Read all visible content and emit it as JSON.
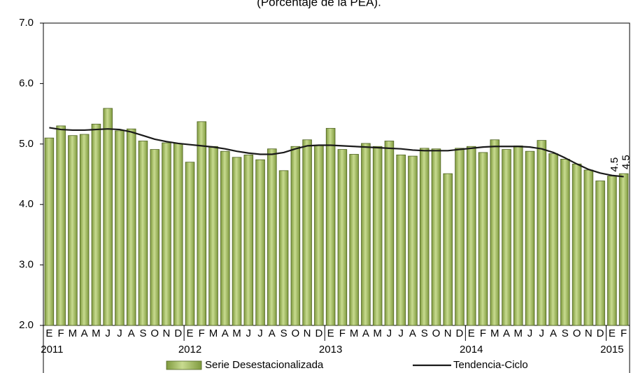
{
  "chart_data": {
    "type": "bar-line",
    "title": "(Porcentaje de la PEA).",
    "categories": [
      "E",
      "F",
      "M",
      "A",
      "M",
      "J",
      "J",
      "A",
      "S",
      "O",
      "N",
      "D",
      "E",
      "F",
      "M",
      "A",
      "M",
      "J",
      "J",
      "A",
      "S",
      "O",
      "N",
      "D",
      "E",
      "F",
      "M",
      "A",
      "M",
      "J",
      "J",
      "A",
      "S",
      "O",
      "N",
      "D",
      "E",
      "F",
      "M",
      "A",
      "M",
      "J",
      "J",
      "A",
      "S",
      "O",
      "N",
      "D",
      "E",
      "F"
    ],
    "years": [
      "2011",
      null,
      null,
      null,
      null,
      null,
      null,
      null,
      null,
      null,
      null,
      null,
      "2012",
      null,
      null,
      null,
      null,
      null,
      null,
      null,
      null,
      null,
      null,
      null,
      "2013",
      null,
      null,
      null,
      null,
      null,
      null,
      null,
      null,
      null,
      null,
      null,
      "2014",
      null,
      null,
      null,
      null,
      null,
      null,
      null,
      null,
      null,
      null,
      null,
      "2015",
      null
    ],
    "series": [
      {
        "name": "Serie Desestacionalizada",
        "color": "#9bb55a",
        "kind": "bar",
        "values": [
          5.1,
          5.3,
          5.14,
          5.16,
          5.33,
          5.59,
          5.22,
          5.25,
          5.05,
          4.91,
          5.02,
          5.01,
          4.7,
          5.37,
          4.96,
          4.88,
          4.78,
          4.82,
          4.74,
          4.92,
          4.56,
          4.96,
          5.07,
          4.98,
          5.26,
          4.91,
          4.83,
          5.01,
          4.96,
          5.05,
          4.82,
          4.8,
          4.93,
          4.92,
          4.51,
          4.93,
          4.96,
          4.86,
          5.07,
          4.91,
          4.97,
          4.88,
          5.06,
          4.84,
          4.75,
          4.67,
          4.57,
          4.39,
          4.47,
          4.51
        ],
        "value_labels": [
          null,
          null,
          null,
          null,
          null,
          null,
          null,
          null,
          null,
          null,
          null,
          null,
          null,
          null,
          null,
          null,
          null,
          null,
          null,
          null,
          null,
          null,
          null,
          null,
          null,
          null,
          null,
          null,
          null,
          null,
          null,
          null,
          null,
          null,
          null,
          null,
          null,
          null,
          null,
          null,
          null,
          null,
          null,
          null,
          null,
          null,
          null,
          null,
          "4.5",
          "4.5"
        ]
      },
      {
        "name": "Tendencia-Ciclo",
        "color": "#1a1a1a",
        "kind": "line",
        "values": [
          5.27,
          5.24,
          5.23,
          5.23,
          5.24,
          5.25,
          5.24,
          5.2,
          5.14,
          5.08,
          5.04,
          5.01,
          4.99,
          4.97,
          4.95,
          4.92,
          4.88,
          4.85,
          4.83,
          4.83,
          4.86,
          4.92,
          4.97,
          4.98,
          4.98,
          4.97,
          4.96,
          4.95,
          4.94,
          4.93,
          4.92,
          4.9,
          4.89,
          4.89,
          4.89,
          4.91,
          4.93,
          4.95,
          4.96,
          4.96,
          4.96,
          4.95,
          4.92,
          4.86,
          4.77,
          4.67,
          4.58,
          4.52,
          4.48,
          4.46
        ]
      }
    ],
    "ylim": [
      2,
      7
    ],
    "yticks": [
      {
        "value": 2,
        "label": "2.0"
      },
      {
        "value": 3,
        "label": "3.0"
      },
      {
        "value": 4,
        "label": "4.0"
      },
      {
        "value": 5,
        "label": "5.0"
      },
      {
        "value": 6,
        "label": "6.0"
      },
      {
        "value": 7,
        "label": "7.0"
      }
    ],
    "grid": false,
    "legend": "bottom"
  }
}
